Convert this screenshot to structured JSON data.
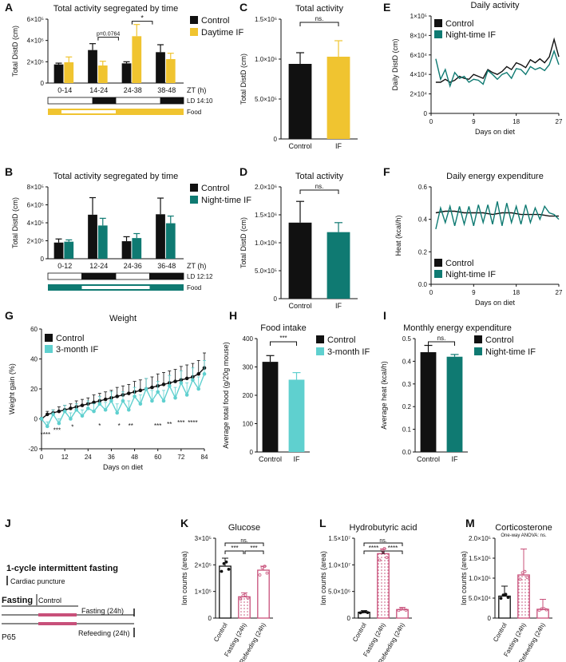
{
  "colors": {
    "black": "#111111",
    "yellow": "#f0c430",
    "teal": "#0f7a72",
    "cyan": "#5fd0cf",
    "pink": "#c8507a",
    "gray": "#999999"
  },
  "panel_letters": [
    "A",
    "B",
    "C",
    "D",
    "E",
    "F",
    "G",
    "H",
    "I",
    "J",
    "K",
    "L",
    "M"
  ],
  "chart_data": [
    {
      "id": "A",
      "type": "bar",
      "title": "Total activity segregated by time",
      "ylabel": "Total DistD (cm)",
      "yticks": [
        "0",
        "2×10⁵",
        "4×10⁵",
        "6×10⁵"
      ],
      "ylim": [
        0,
        600000
      ],
      "categories": [
        "0-14",
        "14-24",
        "24-38",
        "38-48"
      ],
      "xunit": "ZT (h)",
      "series": [
        {
          "name": "Control",
          "color": "black",
          "values": [
            175000,
            310000,
            185000,
            290000
          ],
          "err": [
            12000,
            60000,
            15000,
            70000
          ]
        },
        {
          "name": "Daytime IF",
          "color": "yellow",
          "values": [
            195000,
            165000,
            440000,
            225000
          ],
          "err": [
            50000,
            40000,
            110000,
            55000
          ]
        }
      ],
      "annotations": [
        "p=0.0764",
        "*"
      ],
      "ld_label": "LD 14:10",
      "food_label": "Food"
    },
    {
      "id": "B",
      "type": "bar",
      "title": "Total activity segregated by time",
      "ylabel": "Total DistD (cm)",
      "yticks": [
        "0",
        "2×10⁵",
        "4×10⁵",
        "6×10⁵",
        "8×10⁵"
      ],
      "ylim": [
        0,
        800000
      ],
      "categories": [
        "0-12",
        "12-24",
        "24-36",
        "36-48"
      ],
      "xunit": "ZT (h)",
      "series": [
        {
          "name": "Control",
          "color": "black",
          "values": [
            180000,
            490000,
            195000,
            495000
          ],
          "err": [
            40000,
            190000,
            50000,
            180000
          ]
        },
        {
          "name": "Night-time IF",
          "color": "teal",
          "values": [
            190000,
            370000,
            230000,
            395000
          ],
          "err": [
            20000,
            80000,
            50000,
            80000
          ]
        }
      ],
      "ld_label": "LD 12:12",
      "food_label": "Food"
    },
    {
      "id": "C",
      "type": "bar",
      "title": "Total activity",
      "ylabel": "Total DistD (cm)",
      "yticks": [
        "0",
        "5.0×10⁵",
        "1.0×10⁶",
        "1.5×10⁶"
      ],
      "ylim": [
        0,
        1500000
      ],
      "categories": [
        "Control",
        "IF"
      ],
      "values": [
        940000,
        1030000
      ],
      "err": [
        140000,
        200000
      ],
      "colors": [
        "black",
        "yellow"
      ],
      "annotation": "ns."
    },
    {
      "id": "D",
      "type": "bar",
      "title": "Total activity",
      "ylabel": "Total DistD (cm)",
      "yticks": [
        "0",
        "5.0×10⁵",
        "1.0×10⁶",
        "1.5×10⁶",
        "2.0×10⁶"
      ],
      "ylim": [
        0,
        2000000
      ],
      "categories": [
        "Control",
        "IF"
      ],
      "values": [
        1360000,
        1190000
      ],
      "err": [
        380000,
        170000
      ],
      "colors": [
        "black",
        "teal"
      ],
      "annotation": "ns."
    },
    {
      "id": "E",
      "type": "line",
      "title": "Daily activity",
      "ylabel": "Daily DistD (cm)",
      "xlabel": "Days on diet",
      "yticks": [
        "0",
        "2×10⁴",
        "4×10⁴",
        "6×10⁴",
        "8×10⁴",
        "1×10⁵"
      ],
      "ylim": [
        0,
        100000
      ],
      "xticks": [
        "0",
        "9",
        "18",
        "27"
      ],
      "xlim": [
        0,
        27
      ],
      "series": [
        {
          "name": "Control",
          "color": "black",
          "x": [
            1,
            2,
            3,
            4,
            5,
            6,
            7,
            8,
            9,
            10,
            11,
            12,
            13,
            14,
            15,
            16,
            17,
            18,
            19,
            20,
            21,
            22,
            23,
            24,
            25,
            26,
            27
          ],
          "y": [
            32000,
            32000,
            35000,
            32000,
            34000,
            38000,
            36000,
            35000,
            40000,
            38000,
            36000,
            45000,
            42000,
            40000,
            43000,
            48000,
            45000,
            52000,
            50000,
            47000,
            55000,
            52000,
            56000,
            52000,
            58000,
            76000,
            58000
          ]
        },
        {
          "name": "Night-time IF",
          "color": "teal",
          "x": [
            1,
            2,
            3,
            4,
            5,
            6,
            7,
            8,
            9,
            10,
            11,
            12,
            13,
            14,
            15,
            16,
            17,
            18,
            19,
            20,
            21,
            22,
            23,
            24,
            25,
            26,
            27
          ],
          "y": [
            56000,
            35000,
            45000,
            28000,
            42000,
            36000,
            38000,
            32000,
            35000,
            34000,
            30000,
            44000,
            40000,
            35000,
            40000,
            42000,
            36000,
            46000,
            45000,
            40000,
            48000,
            45000,
            47000,
            44000,
            50000,
            64000,
            50000
          ]
        }
      ]
    },
    {
      "id": "F",
      "type": "line",
      "title": "Daily energy expenditure",
      "ylabel": "Heat (kcal/h)",
      "xlabel": "Days on diet",
      "yticks": [
        "0.0",
        "0.2",
        "0.4",
        "0.6"
      ],
      "ylim": [
        0,
        0.6
      ],
      "xticks": [
        "0",
        "9",
        "18",
        "27"
      ],
      "xlim": [
        0,
        27
      ],
      "series": [
        {
          "name": "Control",
          "color": "black",
          "x": [
            1,
            3,
            5,
            7,
            9,
            11,
            13,
            15,
            17,
            19,
            21,
            23,
            25,
            27
          ],
          "y": [
            0.44,
            0.45,
            0.45,
            0.44,
            0.44,
            0.44,
            0.43,
            0.44,
            0.44,
            0.43,
            0.43,
            0.43,
            0.42,
            0.42
          ]
        },
        {
          "name": "Night-time IF",
          "color": "teal",
          "x": [
            1,
            2,
            3,
            4,
            5,
            6,
            7,
            8,
            9,
            10,
            11,
            12,
            13,
            14,
            15,
            16,
            17,
            18,
            19,
            20,
            21,
            22,
            23,
            24,
            25,
            26,
            27
          ],
          "y": [
            0.34,
            0.47,
            0.38,
            0.48,
            0.36,
            0.48,
            0.37,
            0.48,
            0.36,
            0.49,
            0.38,
            0.49,
            0.37,
            0.51,
            0.36,
            0.5,
            0.38,
            0.48,
            0.37,
            0.49,
            0.38,
            0.47,
            0.4,
            0.48,
            0.44,
            0.43,
            0.4
          ]
        }
      ]
    },
    {
      "id": "G",
      "type": "line",
      "title": "Weight",
      "ylabel": "Weight gain (%)",
      "xlabel": "Days on diet",
      "yticks": [
        "-20",
        "0",
        "20",
        "40",
        "60"
      ],
      "ylim": [
        -20,
        60
      ],
      "xticks": [
        "0",
        "12",
        "24",
        "36",
        "48",
        "60",
        "72",
        "84"
      ],
      "xlim": [
        0,
        84
      ],
      "series": [
        {
          "name": "Control",
          "color": "black",
          "x": [
            0,
            3,
            6,
            9,
            12,
            15,
            18,
            21,
            24,
            27,
            30,
            33,
            36,
            39,
            42,
            45,
            48,
            51,
            54,
            57,
            60,
            63,
            66,
            69,
            72,
            75,
            78,
            81,
            84
          ],
          "y": [
            0,
            3,
            4,
            5,
            6,
            7,
            8,
            9,
            10,
            11,
            12,
            13,
            14,
            15,
            16,
            17,
            18,
            19,
            20,
            21,
            22,
            23,
            24,
            25,
            26,
            27,
            28,
            30,
            34
          ],
          "err": [
            1,
            2,
            2,
            3,
            3,
            3,
            4,
            4,
            4,
            5,
            5,
            5,
            5,
            6,
            6,
            6,
            7,
            7,
            7,
            7,
            8,
            8,
            8,
            8,
            9,
            9,
            9,
            9,
            10
          ]
        },
        {
          "name": "3-month IF",
          "color": "cyan",
          "x": [
            0,
            3,
            6,
            9,
            12,
            15,
            18,
            21,
            24,
            27,
            30,
            33,
            36,
            39,
            42,
            45,
            48,
            51,
            54,
            57,
            60,
            63,
            66,
            69,
            72,
            75,
            78,
            81,
            84
          ],
          "y": [
            0,
            -5,
            3,
            -3,
            5,
            0,
            6,
            2,
            7,
            5,
            10,
            6,
            12,
            4,
            12,
            6,
            15,
            10,
            20,
            12,
            18,
            12,
            22,
            14,
            24,
            16,
            26,
            20,
            30
          ],
          "err": [
            1,
            3,
            3,
            3,
            4,
            4,
            4,
            4,
            5,
            5,
            5,
            5,
            6,
            6,
            6,
            6,
            6,
            6,
            7,
            7,
            7,
            7,
            7,
            7,
            8,
            8,
            8,
            8,
            9
          ]
        }
      ],
      "sig": [
        "****",
        "***",
        "*",
        "*",
        "*",
        "**",
        "***",
        "**",
        "***",
        "****"
      ]
    },
    {
      "id": "H",
      "type": "bar",
      "title": "Food intake",
      "ylabel": "Average total food (g/20g mouse)",
      "yticks": [
        "0",
        "100",
        "200",
        "300",
        "400"
      ],
      "ylim": [
        0,
        400
      ],
      "categories": [
        "Control",
        "IF"
      ],
      "values": [
        318,
        255
      ],
      "err": [
        22,
        25
      ],
      "colors": [
        "black",
        "cyan"
      ],
      "annotation": "***",
      "legend": [
        "Control",
        "3-month IF"
      ]
    },
    {
      "id": "I",
      "type": "bar",
      "title": "Monthly energy expenditure",
      "ylabel": "Average heat (kcal/h)",
      "yticks": [
        "0.0",
        "0.1",
        "0.2",
        "0.3",
        "0.4",
        "0.5"
      ],
      "ylim": [
        0,
        0.5
      ],
      "categories": [
        "Control",
        "IF"
      ],
      "values": [
        0.44,
        0.42
      ],
      "err": [
        0.03,
        0.01
      ],
      "colors": [
        "black",
        "teal"
      ],
      "annotation": "ns.",
      "legend": [
        "Control",
        "Night-time IF"
      ]
    },
    {
      "id": "K",
      "type": "bar",
      "title": "Glucose",
      "ylabel": "Ion counts (area)",
      "yticks": [
        "0",
        "1×10⁵",
        "2×10⁵",
        "3×10⁵"
      ],
      "ylim": [
        0,
        300000
      ],
      "categories": [
        "Control",
        "Fasting (24h)",
        "Refeeding (24h)"
      ],
      "values": [
        195000,
        80000,
        180000
      ],
      "err": [
        30000,
        15000,
        15000
      ],
      "annotations": [
        "ns.",
        "***",
        "***"
      ]
    },
    {
      "id": "L",
      "type": "bar",
      "title": "Hydrobutyric acid",
      "ylabel": "Ion counts (area)",
      "yticks": [
        "0",
        "5.0×10⁶",
        "1.0×10⁷",
        "1.5×10⁷"
      ],
      "ylim": [
        0,
        15000000
      ],
      "categories": [
        "Control",
        "Fasting (24h)",
        "Refeeding (24h)"
      ],
      "values": [
        1100000,
        12100000,
        1600000
      ],
      "err": [
        300000,
        900000,
        400000
      ],
      "annotations": [
        "ns.",
        "****",
        "****"
      ]
    },
    {
      "id": "M",
      "type": "bar",
      "title": "Corticosterone",
      "subtitle": "One-way ANOVA: ns.",
      "ylabel": "Ion counts (area)",
      "yticks": [
        "0",
        "5.0×10⁴",
        "1.0×10⁵",
        "1.5×10⁵",
        "2.0×10⁵"
      ],
      "ylim": [
        0,
        200000
      ],
      "categories": [
        "Control",
        "Fasting (24h)",
        "Refeeding (24h)"
      ],
      "values": [
        55000,
        108000,
        22000
      ],
      "err": [
        25000,
        65000,
        25000
      ]
    }
  ],
  "diagram_j": {
    "title": "1-cycle intermittent fasting",
    "cardiac": "Cardiac puncture",
    "fasting": "Fasting",
    "control": "Control",
    "fasting24": "Fasting (24h)",
    "refeeding24": "Refeeding (24h)",
    "p65": "P65"
  }
}
